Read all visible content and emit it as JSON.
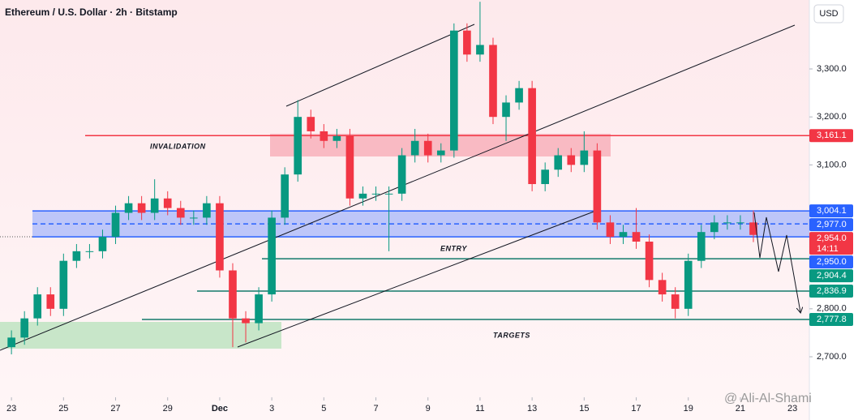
{
  "chart_data": {
    "type": "candlestick",
    "title": "Ethereum / U.S. Dollar · 2h · Bitstamp",
    "currency": "USD",
    "watermark": "@ Ali-Al-Shami",
    "countdown": "14:11",
    "annotations": [
      "INVALIDATION",
      "ENTRY",
      "TARGETS"
    ],
    "up_color": "#089981",
    "down_color": "#f23645",
    "x": [
      0,
      0.5,
      1,
      1.5,
      2,
      2.5,
      3,
      3.5,
      4,
      4.5,
      5,
      5.5,
      6,
      6.5,
      7,
      7.5,
      8,
      8.5,
      9,
      9.5,
      10,
      10.5,
      11,
      11.5,
      12,
      12.5,
      13,
      13.5,
      14,
      14.5,
      15,
      15.5,
      16,
      16.5,
      17,
      17.5,
      18,
      18.5,
      19,
      19.5,
      20,
      20.5,
      21,
      21.5,
      22,
      22.5,
      23,
      23.5,
      24,
      24.5,
      25,
      25.5,
      26,
      26.5,
      27,
      27.5,
      28,
      28.5
    ],
    "open": [
      2720,
      2740,
      2780,
      2830,
      2800,
      2900,
      2920,
      2920,
      2950,
      3000,
      3020,
      3000,
      3030,
      3010,
      2990,
      2990,
      3020,
      2880,
      2780,
      2770,
      2830,
      2990,
      3080,
      3200,
      3170,
      3150,
      3160,
      3030,
      3040,
      3040,
      3040,
      3120,
      3150,
      3120,
      3130,
      3380,
      3330,
      3350,
      3200,
      3230,
      3260,
      3060,
      3090,
      3120,
      3100,
      3130,
      2980,
      2950,
      2960,
      2940,
      2860,
      2830,
      2800,
      2900,
      2960,
      2980,
      2980,
      2980
    ],
    "high": [
      2755,
      2795,
      2845,
      2845,
      2915,
      2935,
      2935,
      2965,
      3015,
      3035,
      3035,
      3070,
      3045,
      3025,
      3005,
      3035,
      3035,
      2895,
      2795,
      2845,
      3005,
      3095,
      3235,
      3215,
      3185,
      3175,
      3175,
      3055,
      3055,
      3055,
      3135,
      3175,
      3165,
      3145,
      3395,
      3395,
      3440,
      3365,
      3245,
      3275,
      3275,
      3105,
      3135,
      3135,
      3170,
      3145,
      2995,
      2975,
      3010,
      2955,
      2875,
      2845,
      2915,
      2975,
      2995,
      2995,
      2995,
      3005
    ],
    "low": [
      2705,
      2725,
      2765,
      2785,
      2785,
      2885,
      2905,
      2905,
      2935,
      2985,
      2985,
      2985,
      2995,
      2975,
      2975,
      2975,
      2865,
      2720,
      2730,
      2755,
      2815,
      2975,
      3065,
      3155,
      3135,
      3135,
      3015,
      3015,
      3025,
      2920,
      3025,
      3105,
      3105,
      3105,
      3115,
      3315,
      3315,
      3185,
      3150,
      3215,
      3045,
      3045,
      3075,
      3085,
      3085,
      2965,
      2935,
      2935,
      2925,
      2845,
      2815,
      2780,
      2785,
      2885,
      2945,
      2965,
      2965,
      2939
    ],
    "close": [
      2740,
      2780,
      2830,
      2800,
      2900,
      2920,
      2920,
      2950,
      3000,
      3020,
      3000,
      3030,
      3010,
      2990,
      2990,
      3020,
      2880,
      2780,
      2770,
      2830,
      2990,
      3080,
      3200,
      3170,
      3150,
      3160,
      3030,
      3040,
      3040,
      3040,
      3120,
      3150,
      3120,
      3130,
      3380,
      3330,
      3350,
      3200,
      3230,
      3260,
      3060,
      3090,
      3120,
      3100,
      3130,
      2980,
      2950,
      2960,
      2940,
      2860,
      2830,
      2800,
      2900,
      2960,
      2980,
      2980,
      2980,
      2954
    ],
    "xlim": [
      -0.44,
      30.65
    ],
    "ylim": [
      2615.5,
      3443.7
    ],
    "xticks": [
      {
        "value": 0,
        "label": "23"
      },
      {
        "value": 2,
        "label": "25"
      },
      {
        "value": 4,
        "label": "27"
      },
      {
        "value": 6,
        "label": "29"
      },
      {
        "value": 8,
        "label": "Dec"
      },
      {
        "value": 10,
        "label": "3"
      },
      {
        "value": 12,
        "label": "5"
      },
      {
        "value": 14,
        "label": "7"
      },
      {
        "value": 16,
        "label": "9"
      },
      {
        "value": 18,
        "label": "11"
      },
      {
        "value": 20,
        "label": "13"
      },
      {
        "value": 22,
        "label": "15"
      },
      {
        "value": 24,
        "label": "17"
      },
      {
        "value": 26,
        "label": "19"
      },
      {
        "value": 28,
        "label": "21"
      },
      {
        "value": 30,
        "label": "23"
      }
    ],
    "yticks": [
      {
        "value": 3300,
        "label": "3,300.0"
      },
      {
        "value": 3200,
        "label": "3,200.0"
      },
      {
        "value": 3100,
        "label": "3,100.0"
      },
      {
        "value": 2800,
        "label": "2,800.0"
      },
      {
        "value": 2700,
        "label": "2,700.0"
      }
    ],
    "levels": [
      {
        "value": 3161.1,
        "label": "3,161.1",
        "color": "#f23645"
      },
      {
        "value": 3004.1,
        "label": "3,004.1",
        "color": "#2962ff"
      },
      {
        "value": 2977.0,
        "label": "2,977.0",
        "color": "#2962ff"
      },
      {
        "value": 2954.0,
        "label": "2,954.0",
        "color": "#f23645"
      },
      {
        "value": 2950.0,
        "label": "2,950.0",
        "color": "#2962ff"
      },
      {
        "value": 2904.4,
        "label": "2,904.4",
        "color": "#089981"
      },
      {
        "value": 2836.9,
        "label": "2,836.9",
        "color": "#089981"
      },
      {
        "value": 2777.8,
        "label": "2,777.8",
        "color": "#089981"
      }
    ]
  }
}
